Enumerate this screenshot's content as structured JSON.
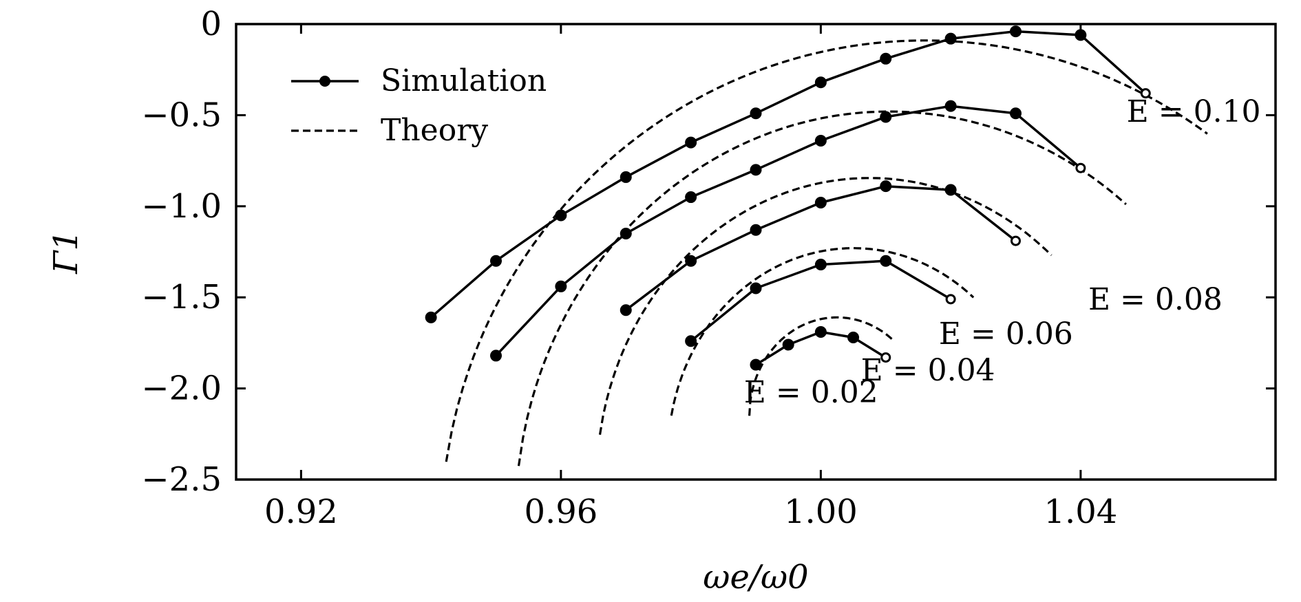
{
  "chart_data": {
    "type": "line",
    "title": "",
    "xlabel": "ωe/ω0",
    "ylabel": "Γ1",
    "xlim": [
      0.91,
      1.07
    ],
    "ylim": [
      -2.5,
      0
    ],
    "x_ticks": [
      0.92,
      0.96,
      1.0,
      1.04
    ],
    "x_tick_labels": [
      "0.92",
      "0.96",
      "1.00",
      "1.04"
    ],
    "y_ticks": [
      0,
      -0.5,
      -1.0,
      -1.5,
      -2.0,
      -2.5
    ],
    "y_tick_labels": [
      "0",
      "−0.5",
      "−1.0",
      "−1.5",
      "−2.0",
      "−2.5"
    ],
    "grid": false,
    "legend": {
      "placement": "top-left",
      "entries": [
        {
          "label": "Simulation",
          "style": "solid-marker"
        },
        {
          "label": "Theory",
          "style": "dashed"
        }
      ]
    },
    "series": [
      {
        "name": "E = 0.02",
        "kind": "simulation",
        "x": [
          0.99,
          0.995,
          1.0,
          1.005,
          1.01
        ],
        "y": [
          -1.87,
          -1.76,
          -1.69,
          -1.72,
          -1.83
        ]
      },
      {
        "name": "E = 0.04",
        "kind": "simulation",
        "x": [
          0.98,
          0.99,
          1.0,
          1.01,
          1.02
        ],
        "y": [
          -1.74,
          -1.45,
          -1.32,
          -1.3,
          -1.51
        ]
      },
      {
        "name": "E = 0.06",
        "kind": "simulation",
        "x": [
          0.97,
          0.98,
          0.99,
          1.0,
          1.01,
          1.02,
          1.03
        ],
        "y": [
          -1.57,
          -1.3,
          -1.13,
          -0.98,
          -0.89,
          -0.91,
          -1.19
        ]
      },
      {
        "name": "E = 0.08",
        "kind": "simulation",
        "x": [
          0.95,
          0.96,
          0.97,
          0.98,
          0.99,
          1.0,
          1.01,
          1.02,
          1.03,
          1.04
        ],
        "y": [
          -1.82,
          -1.44,
          -1.15,
          -0.95,
          -0.8,
          -0.64,
          -0.51,
          -0.45,
          -0.49,
          -0.79
        ]
      },
      {
        "name": "E = 0.10",
        "kind": "simulation",
        "x": [
          0.94,
          0.95,
          0.96,
          0.97,
          0.98,
          0.99,
          1.0,
          1.01,
          1.02,
          1.03,
          1.04,
          1.05
        ],
        "y": [
          -1.61,
          -1.3,
          -1.05,
          -0.84,
          -0.65,
          -0.49,
          -0.32,
          -0.19,
          -0.08,
          -0.04,
          -0.06,
          -0.38
        ]
      },
      {
        "name": "E = 0.02",
        "kind": "theory",
        "center": [
          1.0025,
          -2.15
        ],
        "rx": 0.0135,
        "ry": 0.54,
        "x_range": [
          0.989,
          1.011
        ]
      },
      {
        "name": "E = 0.04",
        "kind": "theory",
        "center": [
          1.005,
          -2.36
        ],
        "rx": 0.0285,
        "ry": 1.13,
        "x_range": [
          0.977,
          1.0235
        ]
      },
      {
        "name": "E = 0.06",
        "kind": "theory",
        "center": [
          1.0075,
          -2.51
        ],
        "rx": 0.042,
        "ry": 1.665,
        "x_range": [
          0.9655,
          1.0355
        ]
      },
      {
        "name": "E = 0.08",
        "kind": "theory",
        "center": [
          1.0105,
          -2.72
        ],
        "rx": 0.0575,
        "ry": 2.24,
        "x_range": [
          0.9535,
          1.047
        ]
      },
      {
        "name": "E = 0.10",
        "kind": "theory",
        "center": [
          1.016,
          -2.81
        ],
        "rx": 0.0745,
        "ry": 2.72,
        "x_range": [
          0.9415,
          1.0595
        ]
      }
    ],
    "annotations": [
      {
        "text": "E = 0.02",
        "x": 0.9985,
        "y": -2.02,
        "anchor": "middle"
      },
      {
        "text": "E = 0.04",
        "x": 1.0165,
        "y": -1.9,
        "anchor": "middle"
      },
      {
        "text": "E = 0.06",
        "x": 1.0285,
        "y": -1.7,
        "anchor": "middle"
      },
      {
        "text": "E = 0.08",
        "x": 1.0515,
        "y": -1.51,
        "anchor": "middle"
      },
      {
        "text": "E = 0.10",
        "x": 1.0574,
        "y": -0.48,
        "anchor": "middle"
      }
    ]
  }
}
